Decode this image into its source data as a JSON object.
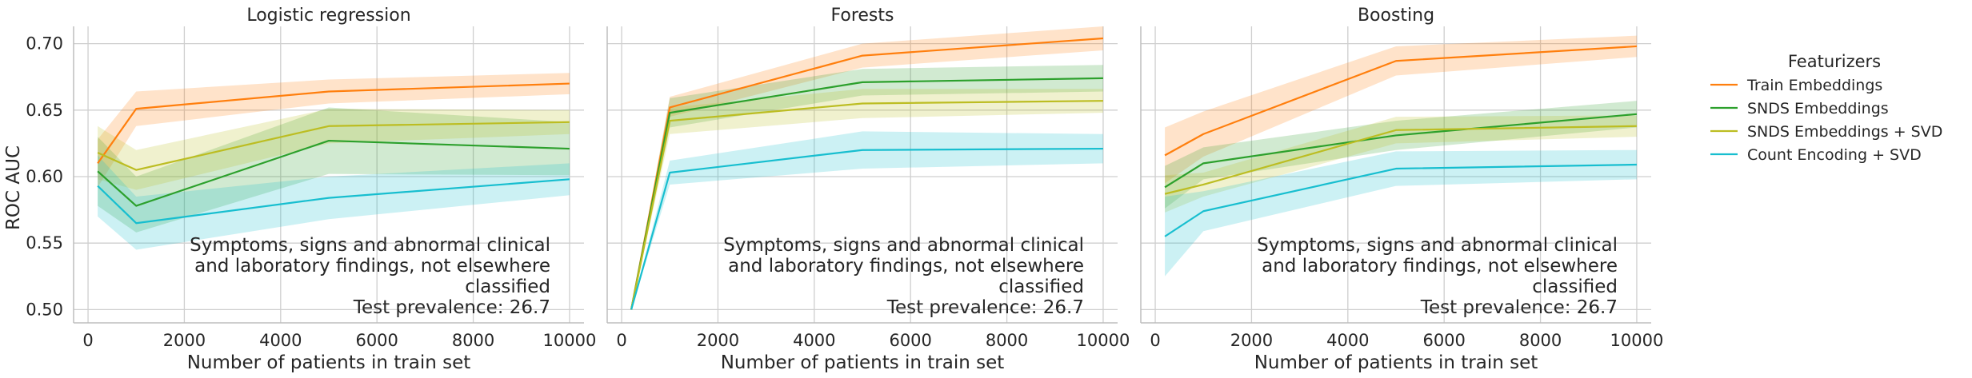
{
  "figure": {
    "ylabel": "ROC AUC",
    "xlabel": "Number of patients in train set",
    "legend": {
      "title": "Featurizers",
      "placement": "right",
      "entries": [
        {
          "name": "Train Embeddings",
          "color": "#ff7f0e"
        },
        {
          "name": "SNDS Embeddings",
          "color": "#2ca02c"
        },
        {
          "name": "SNDS Embeddings + SVD",
          "color": "#bcbd22"
        },
        {
          "name": "Count Encoding + SVD",
          "color": "#17becf"
        }
      ]
    },
    "annotation_lines": [
      "Symptoms, signs and abnormal clinical",
      "and laboratory findings, not elsewhere",
      "classified",
      "Test prevalence: 26.7"
    ],
    "x_ticks": [
      "0",
      "2000",
      "4000",
      "6000",
      "8000",
      "10000"
    ],
    "y_ticks": [
      "0.50",
      "0.55",
      "0.60",
      "0.65",
      "0.70"
    ]
  },
  "chart_data": [
    {
      "type": "line",
      "title": "Logistic regression",
      "xlabel": "Number of patients in train set",
      "ylabel": "ROC AUC",
      "xlim": [
        -300,
        10300
      ],
      "ylim": [
        0.49,
        0.713
      ],
      "grid": true,
      "x": [
        200,
        1000,
        5000,
        10000
      ],
      "series": [
        {
          "name": "Train Embeddings",
          "values": [
            0.61,
            0.651,
            0.664,
            0.67
          ],
          "lower": [
            0.592,
            0.638,
            0.655,
            0.662
          ],
          "upper": [
            0.628,
            0.664,
            0.673,
            0.678
          ]
        },
        {
          "name": "SNDS Embeddings",
          "values": [
            0.604,
            0.578,
            0.627,
            0.621
          ],
          "lower": [
            0.578,
            0.558,
            0.602,
            0.601
          ],
          "upper": [
            0.63,
            0.6,
            0.652,
            0.641
          ]
        },
        {
          "name": "SNDS Embeddings + SVD",
          "values": [
            0.618,
            0.605,
            0.638,
            0.641
          ],
          "lower": [
            0.598,
            0.59,
            0.625,
            0.632
          ],
          "upper": [
            0.638,
            0.62,
            0.651,
            0.65
          ]
        },
        {
          "name": "Count Encoding + SVD",
          "values": [
            0.593,
            0.565,
            0.584,
            0.598
          ],
          "lower": [
            0.57,
            0.545,
            0.568,
            0.586
          ],
          "upper": [
            0.616,
            0.585,
            0.6,
            0.61
          ]
        }
      ]
    },
    {
      "type": "line",
      "title": "Forests",
      "xlabel": "Number of patients in train set",
      "ylabel": "",
      "xlim": [
        -300,
        10300
      ],
      "ylim": [
        0.49,
        0.713
      ],
      "grid": true,
      "x": [
        200,
        1000,
        5000,
        10000
      ],
      "series": [
        {
          "name": "Train Embeddings",
          "values": [
            0.5,
            0.652,
            0.691,
            0.704
          ],
          "lower": [
            0.5,
            0.645,
            0.682,
            0.695
          ],
          "upper": [
            0.5,
            0.66,
            0.7,
            0.713
          ]
        },
        {
          "name": "SNDS Embeddings",
          "values": [
            0.5,
            0.648,
            0.671,
            0.674
          ],
          "lower": [
            0.5,
            0.637,
            0.661,
            0.664
          ],
          "upper": [
            0.5,
            0.659,
            0.681,
            0.684
          ]
        },
        {
          "name": "SNDS Embeddings + SVD",
          "values": [
            0.5,
            0.642,
            0.655,
            0.657
          ],
          "lower": [
            0.5,
            0.632,
            0.644,
            0.648
          ],
          "upper": [
            0.5,
            0.652,
            0.666,
            0.666
          ]
        },
        {
          "name": "Count Encoding + SVD",
          "values": [
            0.5,
            0.603,
            0.62,
            0.621
          ],
          "lower": [
            0.5,
            0.594,
            0.606,
            0.61
          ],
          "upper": [
            0.5,
            0.612,
            0.634,
            0.632
          ]
        }
      ]
    },
    {
      "type": "line",
      "title": "Boosting",
      "xlabel": "Number of patients in train set",
      "ylabel": "",
      "xlim": [
        -300,
        10300
      ],
      "ylim": [
        0.49,
        0.713
      ],
      "grid": true,
      "x": [
        200,
        1000,
        5000,
        10000
      ],
      "series": [
        {
          "name": "Train Embeddings",
          "values": [
            0.616,
            0.632,
            0.687,
            0.698
          ],
          "lower": [
            0.595,
            0.615,
            0.676,
            0.69
          ],
          "upper": [
            0.637,
            0.649,
            0.698,
            0.706
          ]
        },
        {
          "name": "SNDS Embeddings",
          "values": [
            0.592,
            0.61,
            0.631,
            0.647
          ],
          "lower": [
            0.576,
            0.598,
            0.62,
            0.637
          ],
          "upper": [
            0.608,
            0.622,
            0.642,
            0.657
          ]
        },
        {
          "name": "SNDS Embeddings + SVD",
          "values": [
            0.587,
            0.594,
            0.635,
            0.638
          ],
          "lower": [
            0.573,
            0.585,
            0.625,
            0.63
          ],
          "upper": [
            0.601,
            0.603,
            0.645,
            0.646
          ]
        },
        {
          "name": "Count Encoding + SVD",
          "values": [
            0.555,
            0.574,
            0.606,
            0.609
          ],
          "lower": [
            0.525,
            0.559,
            0.593,
            0.598
          ],
          "upper": [
            0.585,
            0.589,
            0.619,
            0.62
          ]
        }
      ]
    }
  ]
}
